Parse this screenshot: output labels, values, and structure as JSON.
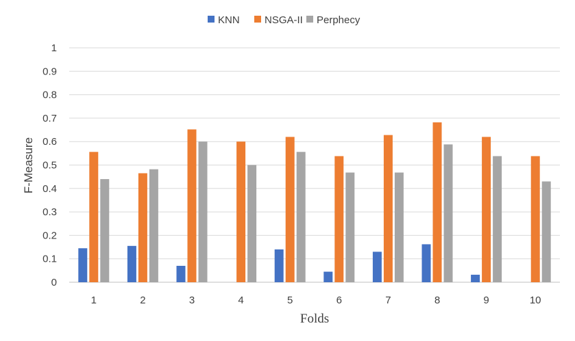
{
  "chart_data": {
    "type": "bar",
    "xlabel": "Folds",
    "ylabel": "F-Measure",
    "ylim": [
      0,
      1
    ],
    "yticks": [
      "0",
      "0.1",
      "0.2",
      "0.3",
      "0.4",
      "0.5",
      "0.6",
      "0.7",
      "0.8",
      "0.9",
      "1"
    ],
    "categories": [
      "1",
      "2",
      "3",
      "4",
      "5",
      "6",
      "7",
      "8",
      "9",
      "10"
    ],
    "grid": true,
    "legend_position": "top",
    "series": [
      {
        "name": "KNN",
        "color": "#4472C4",
        "values": [
          0.145,
          0.155,
          0.07,
          0,
          0.14,
          0.045,
          0.13,
          0.162,
          0.032,
          0
        ]
      },
      {
        "name": "NSGA-II",
        "color": "#ED7D31",
        "values": [
          0.556,
          0.465,
          0.652,
          0.6,
          0.62,
          0.538,
          0.628,
          0.682,
          0.62,
          0.538
        ]
      },
      {
        "name": "Perphecy",
        "color": "#A5A5A5",
        "values": [
          0.44,
          0.482,
          0.6,
          0.5,
          0.556,
          0.468,
          0.468,
          0.588,
          0.538,
          0.43
        ]
      }
    ]
  }
}
